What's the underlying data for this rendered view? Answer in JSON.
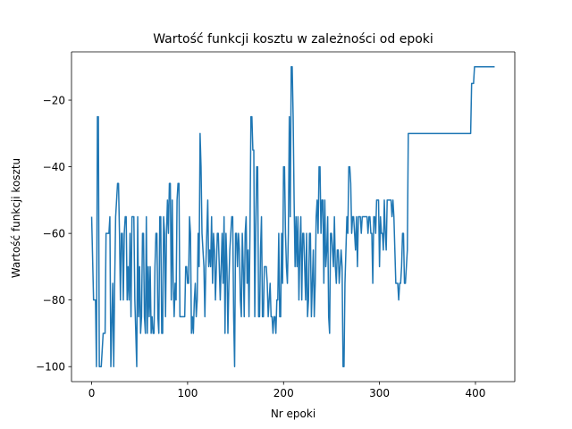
{
  "chart_data": {
    "type": "line",
    "title": "Wartość funkcji kosztu w zależności od epoki",
    "xlabel": "Nr epoki",
    "ylabel": "Wartość funkcji kosztu",
    "xlim": [
      -21,
      441
    ],
    "ylim": [
      -104.5,
      -5.5
    ],
    "xticks": [
      0,
      100,
      200,
      300,
      400
    ],
    "yticks": [
      -100,
      -80,
      -60,
      -40,
      -20
    ],
    "grid": false,
    "line_color": "#1f77b4",
    "series": [
      {
        "values": [
          [
            0,
            -55
          ],
          [
            2,
            -80
          ],
          [
            4,
            -80
          ],
          [
            5,
            -100
          ],
          [
            6,
            -25
          ],
          [
            7,
            -25
          ],
          [
            8,
            -100
          ],
          [
            10,
            -100
          ],
          [
            12,
            -90
          ],
          [
            14,
            -90
          ],
          [
            15,
            -60
          ],
          [
            18,
            -60
          ],
          [
            19,
            -55
          ],
          [
            20,
            -100
          ],
          [
            22,
            -75
          ],
          [
            23,
            -100
          ],
          [
            24,
            -75
          ],
          [
            25,
            -55
          ],
          [
            26,
            -50
          ],
          [
            27,
            -45
          ],
          [
            28,
            -45
          ],
          [
            29,
            -60
          ],
          [
            30,
            -80
          ],
          [
            31,
            -60
          ],
          [
            32,
            -60
          ],
          [
            33,
            -80
          ],
          [
            34,
            -60
          ],
          [
            35,
            -55
          ],
          [
            36,
            -55
          ],
          [
            37,
            -80
          ],
          [
            38,
            -70
          ],
          [
            39,
            -80
          ],
          [
            40,
            -60
          ],
          [
            41,
            -85
          ],
          [
            42,
            -55
          ],
          [
            43,
            -55
          ],
          [
            44,
            -55
          ],
          [
            45,
            -80
          ],
          [
            46,
            -90
          ],
          [
            47,
            -100
          ],
          [
            48,
            -55
          ],
          [
            49,
            -85
          ],
          [
            50,
            -70
          ],
          [
            51,
            -90
          ],
          [
            52,
            -85
          ],
          [
            53,
            -60
          ],
          [
            54,
            -60
          ],
          [
            55,
            -85
          ],
          [
            56,
            -90
          ],
          [
            57,
            -55
          ],
          [
            58,
            -90
          ],
          [
            59,
            -70
          ],
          [
            60,
            -85
          ],
          [
            61,
            -70
          ],
          [
            62,
            -90
          ],
          [
            63,
            -85
          ],
          [
            64,
            -90
          ],
          [
            65,
            -90
          ],
          [
            66,
            -70
          ],
          [
            67,
            -60
          ],
          [
            68,
            -60
          ],
          [
            69,
            -85
          ],
          [
            70,
            -90
          ],
          [
            71,
            -55
          ],
          [
            72,
            -55
          ],
          [
            73,
            -90
          ],
          [
            74,
            -90
          ],
          [
            75,
            -55
          ],
          [
            76,
            -60
          ],
          [
            77,
            -85
          ],
          [
            78,
            -60
          ],
          [
            79,
            -50
          ],
          [
            80,
            -60
          ],
          [
            81,
            -45
          ],
          [
            82,
            -45
          ],
          [
            83,
            -80
          ],
          [
            84,
            -50
          ],
          [
            85,
            -75
          ],
          [
            86,
            -85
          ],
          [
            87,
            -75
          ],
          [
            88,
            -80
          ],
          [
            89,
            -50
          ],
          [
            90,
            -45
          ],
          [
            91,
            -45
          ],
          [
            92,
            -85
          ],
          [
            94,
            -85
          ],
          [
            96,
            -85
          ],
          [
            97,
            -85
          ],
          [
            98,
            -70
          ],
          [
            99,
            -70
          ],
          [
            100,
            -75
          ],
          [
            101,
            -75
          ],
          [
            102,
            -55
          ],
          [
            103,
            -60
          ],
          [
            104,
            -90
          ],
          [
            105,
            -85
          ],
          [
            106,
            -90
          ],
          [
            107,
            -80
          ],
          [
            108,
            -75
          ],
          [
            109,
            -85
          ],
          [
            110,
            -80
          ],
          [
            111,
            -60
          ],
          [
            112,
            -70
          ],
          [
            113,
            -30
          ],
          [
            114,
            -40
          ],
          [
            115,
            -60
          ],
          [
            116,
            -65
          ],
          [
            117,
            -70
          ],
          [
            118,
            -85
          ],
          [
            119,
            -70
          ],
          [
            120,
            -60
          ],
          [
            121,
            -50
          ],
          [
            122,
            -70
          ],
          [
            123,
            -65
          ],
          [
            124,
            -70
          ],
          [
            125,
            -55
          ],
          [
            126,
            -75
          ],
          [
            127,
            -60
          ],
          [
            128,
            -65
          ],
          [
            129,
            -80
          ],
          [
            130,
            -70
          ],
          [
            131,
            -60
          ],
          [
            132,
            -60
          ],
          [
            133,
            -70
          ],
          [
            134,
            -80
          ],
          [
            135,
            -70
          ],
          [
            136,
            -60
          ],
          [
            137,
            -75
          ],
          [
            138,
            -55
          ],
          [
            139,
            -90
          ],
          [
            140,
            -60
          ],
          [
            141,
            -70
          ],
          [
            142,
            -90
          ],
          [
            143,
            -75
          ],
          [
            144,
            -65
          ],
          [
            145,
            -60
          ],
          [
            146,
            -55
          ],
          [
            147,
            -55
          ],
          [
            148,
            -85
          ],
          [
            149,
            -100
          ],
          [
            150,
            -60
          ],
          [
            151,
            -60
          ],
          [
            152,
            -70
          ],
          [
            153,
            -60
          ],
          [
            154,
            -65
          ],
          [
            155,
            -80
          ],
          [
            156,
            -85
          ],
          [
            157,
            -60
          ],
          [
            158,
            -70
          ],
          [
            159,
            -85
          ],
          [
            160,
            -60
          ],
          [
            161,
            -55
          ],
          [
            162,
            -75
          ],
          [
            163,
            -65
          ],
          [
            164,
            -85
          ],
          [
            165,
            -60
          ],
          [
            166,
            -25
          ],
          [
            167,
            -25
          ],
          [
            168,
            -35
          ],
          [
            169,
            -35
          ],
          [
            170,
            -85
          ],
          [
            171,
            -60
          ],
          [
            172,
            -40
          ],
          [
            173,
            -40
          ],
          [
            174,
            -85
          ],
          [
            175,
            -85
          ],
          [
            176,
            -65
          ],
          [
            177,
            -55
          ],
          [
            178,
            -85
          ],
          [
            179,
            -85
          ],
          [
            180,
            -70
          ],
          [
            181,
            -70
          ],
          [
            182,
            -70
          ],
          [
            183,
            -75
          ],
          [
            184,
            -85
          ],
          [
            185,
            -80
          ],
          [
            186,
            -75
          ],
          [
            187,
            -85
          ],
          [
            188,
            -85
          ],
          [
            189,
            -90
          ],
          [
            190,
            -85
          ],
          [
            191,
            -85
          ],
          [
            192,
            -90
          ],
          [
            193,
            -80
          ],
          [
            194,
            -80
          ],
          [
            195,
            -60
          ],
          [
            196,
            -85
          ],
          [
            197,
            -85
          ],
          [
            198,
            -60
          ],
          [
            199,
            -75
          ],
          [
            200,
            -40
          ],
          [
            201,
            -40
          ],
          [
            202,
            -60
          ],
          [
            203,
            -70
          ],
          [
            204,
            -75
          ],
          [
            205,
            -60
          ],
          [
            206,
            -25
          ],
          [
            207,
            -55
          ],
          [
            208,
            -10
          ],
          [
            209,
            -10
          ],
          [
            210,
            -25
          ],
          [
            211,
            -50
          ],
          [
            212,
            -70
          ],
          [
            213,
            -55
          ],
          [
            214,
            -70
          ],
          [
            215,
            -55
          ],
          [
            216,
            -80
          ],
          [
            217,
            -65
          ],
          [
            218,
            -55
          ],
          [
            219,
            -80
          ],
          [
            220,
            -60
          ],
          [
            221,
            -60
          ],
          [
            222,
            -70
          ],
          [
            223,
            -80
          ],
          [
            224,
            -60
          ],
          [
            225,
            -85
          ],
          [
            226,
            -80
          ],
          [
            227,
            -60
          ],
          [
            228,
            -60
          ],
          [
            229,
            -85
          ],
          [
            230,
            -75
          ],
          [
            231,
            -65
          ],
          [
            232,
            -85
          ],
          [
            233,
            -75
          ],
          [
            234,
            -55
          ],
          [
            235,
            -50
          ],
          [
            236,
            -60
          ],
          [
            237,
            -40
          ],
          [
            238,
            -40
          ],
          [
            239,
            -60
          ],
          [
            240,
            -50
          ],
          [
            241,
            -50
          ],
          [
            242,
            -75
          ],
          [
            243,
            -50
          ],
          [
            244,
            -70
          ],
          [
            245,
            -65
          ],
          [
            246,
            -55
          ],
          [
            247,
            -85
          ],
          [
            248,
            -90
          ],
          [
            249,
            -60
          ],
          [
            250,
            -60
          ],
          [
            251,
            -65
          ],
          [
            252,
            -70
          ],
          [
            253,
            -55
          ],
          [
            254,
            -70
          ],
          [
            255,
            -75
          ],
          [
            256,
            -65
          ],
          [
            257,
            -65
          ],
          [
            258,
            -75
          ],
          [
            259,
            -70
          ],
          [
            260,
            -65
          ],
          [
            261,
            -70
          ],
          [
            262,
            -100
          ],
          [
            263,
            -100
          ],
          [
            264,
            -75
          ],
          [
            265,
            -65
          ],
          [
            266,
            -55
          ],
          [
            267,
            -60
          ],
          [
            268,
            -40
          ],
          [
            269,
            -40
          ],
          [
            270,
            -45
          ],
          [
            271,
            -60
          ],
          [
            272,
            -55
          ],
          [
            273,
            -55
          ],
          [
            274,
            -60
          ],
          [
            275,
            -65
          ],
          [
            276,
            -55
          ],
          [
            277,
            -70
          ],
          [
            278,
            -55
          ],
          [
            279,
            -55
          ],
          [
            280,
            -55
          ],
          [
            281,
            -60
          ],
          [
            282,
            -55
          ],
          [
            283,
            -55
          ],
          [
            284,
            -55
          ],
          [
            285,
            -55
          ],
          [
            286,
            -55
          ],
          [
            287,
            -55
          ],
          [
            288,
            -60
          ],
          [
            289,
            -55
          ],
          [
            290,
            -55
          ],
          [
            291,
            -60
          ],
          [
            292,
            -60
          ],
          [
            293,
            -75
          ],
          [
            294,
            -55
          ],
          [
            295,
            -55
          ],
          [
            296,
            -60
          ],
          [
            297,
            -50
          ],
          [
            298,
            -50
          ],
          [
            299,
            -50
          ],
          [
            300,
            -70
          ],
          [
            301,
            -55
          ],
          [
            302,
            -60
          ],
          [
            303,
            -60
          ],
          [
            304,
            -65
          ],
          [
            305,
            -50
          ],
          [
            306,
            -60
          ],
          [
            307,
            -65
          ],
          [
            308,
            -50
          ],
          [
            309,
            -50
          ],
          [
            310,
            -50
          ],
          [
            311,
            -50
          ],
          [
            312,
            -50
          ],
          [
            313,
            -55
          ],
          [
            314,
            -50
          ],
          [
            315,
            -55
          ],
          [
            316,
            -65
          ],
          [
            317,
            -75
          ],
          [
            318,
            -75
          ],
          [
            319,
            -75
          ],
          [
            320,
            -80
          ],
          [
            321,
            -75
          ],
          [
            322,
            -75
          ],
          [
            323,
            -70
          ],
          [
            324,
            -60
          ],
          [
            325,
            -60
          ],
          [
            326,
            -75
          ],
          [
            327,
            -75
          ],
          [
            328,
            -70
          ],
          [
            329,
            -65
          ],
          [
            330,
            -30
          ],
          [
            331,
            -30
          ],
          [
            395,
            -30
          ],
          [
            396,
            -15
          ],
          [
            397,
            -15
          ],
          [
            398,
            -15
          ],
          [
            399,
            -10
          ],
          [
            420,
            -10
          ]
        ]
      }
    ]
  }
}
